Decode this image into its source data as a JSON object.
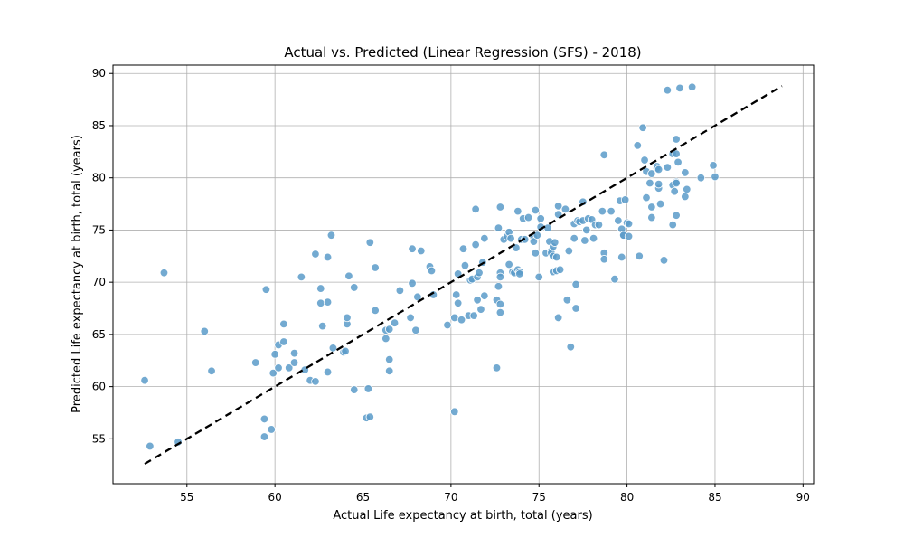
{
  "chart_data": {
    "type": "scatter",
    "title": "Actual vs. Predicted (Linear Regression (SFS) - 2018)",
    "xlabel": "Actual Life expectancy at birth, total (years)",
    "ylabel": "Predicted Life expectancy at birth, total (years)",
    "xlim": [
      50.8,
      90.6
    ],
    "ylim": [
      50.7,
      90.8
    ],
    "xticks": [
      55,
      60,
      65,
      70,
      75,
      80,
      85,
      90
    ],
    "yticks": [
      55,
      60,
      65,
      70,
      75,
      80,
      85,
      90
    ],
    "grid": true,
    "point_color": "#5b9bc9",
    "reference_line": {
      "style": "dashed",
      "color": "#000000",
      "x": [
        52.6,
        88.8
      ],
      "y": [
        52.6,
        88.8
      ]
    },
    "points": [
      [
        52.6,
        60.6
      ],
      [
        52.9,
        54.3
      ],
      [
        53.7,
        70.9
      ],
      [
        54.5,
        54.7
      ],
      [
        56.0,
        65.3
      ],
      [
        56.4,
        61.5
      ],
      [
        58.9,
        62.3
      ],
      [
        59.4,
        55.2
      ],
      [
        59.4,
        56.9
      ],
      [
        59.5,
        69.3
      ],
      [
        59.8,
        55.9
      ],
      [
        59.9,
        61.3
      ],
      [
        60.0,
        63.1
      ],
      [
        60.2,
        61.8
      ],
      [
        60.2,
        64.0
      ],
      [
        60.5,
        64.3
      ],
      [
        60.5,
        66.0
      ],
      [
        60.8,
        61.8
      ],
      [
        61.1,
        63.2
      ],
      [
        61.1,
        62.3
      ],
      [
        61.5,
        70.5
      ],
      [
        61.7,
        61.6
      ],
      [
        62.0,
        60.6
      ],
      [
        62.3,
        60.5
      ],
      [
        62.3,
        72.7
      ],
      [
        62.6,
        69.4
      ],
      [
        62.6,
        68.0
      ],
      [
        62.7,
        65.8
      ],
      [
        63.0,
        72.4
      ],
      [
        63.0,
        68.1
      ],
      [
        63.0,
        61.4
      ],
      [
        63.2,
        74.5
      ],
      [
        63.3,
        63.7
      ],
      [
        63.9,
        63.3
      ],
      [
        64.0,
        63.4
      ],
      [
        64.1,
        66.0
      ],
      [
        64.1,
        66.6
      ],
      [
        64.2,
        70.6
      ],
      [
        64.5,
        69.5
      ],
      [
        64.5,
        59.7
      ],
      [
        65.2,
        57.0
      ],
      [
        65.3,
        59.8
      ],
      [
        65.4,
        57.1
      ],
      [
        65.4,
        73.8
      ],
      [
        65.7,
        71.4
      ],
      [
        65.7,
        67.3
      ],
      [
        66.3,
        64.6
      ],
      [
        66.3,
        65.4
      ],
      [
        66.5,
        62.6
      ],
      [
        66.5,
        61.5
      ],
      [
        66.5,
        65.5
      ],
      [
        66.8,
        66.1
      ],
      [
        67.1,
        69.2
      ],
      [
        67.7,
        66.6
      ],
      [
        67.8,
        73.2
      ],
      [
        67.8,
        69.9
      ],
      [
        68.0,
        65.4
      ],
      [
        68.1,
        68.6
      ],
      [
        68.3,
        73.0
      ],
      [
        68.8,
        71.5
      ],
      [
        68.9,
        71.1
      ],
      [
        69.0,
        68.8
      ],
      [
        69.8,
        65.9
      ],
      [
        70.2,
        57.6
      ],
      [
        70.2,
        66.6
      ],
      [
        70.3,
        68.8
      ],
      [
        70.4,
        70.8
      ],
      [
        70.4,
        68.0
      ],
      [
        70.6,
        66.4
      ],
      [
        70.7,
        73.2
      ],
      [
        70.8,
        71.6
      ],
      [
        71.0,
        66.8
      ],
      [
        71.1,
        70.2
      ],
      [
        71.2,
        70.3
      ],
      [
        71.3,
        66.8
      ],
      [
        71.4,
        73.6
      ],
      [
        71.4,
        77.0
      ],
      [
        71.5,
        68.3
      ],
      [
        71.5,
        70.5
      ],
      [
        71.6,
        70.9
      ],
      [
        71.7,
        67.4
      ],
      [
        71.8,
        71.9
      ],
      [
        71.9,
        68.7
      ],
      [
        71.9,
        74.2
      ],
      [
        72.6,
        68.3
      ],
      [
        72.6,
        61.8
      ],
      [
        72.7,
        69.6
      ],
      [
        72.7,
        75.2
      ],
      [
        72.8,
        67.9
      ],
      [
        72.8,
        70.9
      ],
      [
        72.8,
        67.1
      ],
      [
        72.8,
        70.5
      ],
      [
        72.8,
        77.2
      ],
      [
        73.0,
        74.1
      ],
      [
        73.2,
        74.4
      ],
      [
        73.3,
        74.8
      ],
      [
        73.3,
        71.7
      ],
      [
        73.4,
        74.2
      ],
      [
        73.5,
        71.0
      ],
      [
        73.6,
        70.9
      ],
      [
        73.7,
        73.3
      ],
      [
        73.8,
        71.2
      ],
      [
        73.8,
        76.8
      ],
      [
        73.9,
        71.0
      ],
      [
        73.9,
        70.8
      ],
      [
        74.0,
        74.1
      ],
      [
        74.1,
        76.1
      ],
      [
        74.2,
        74.1
      ],
      [
        74.4,
        76.2
      ],
      [
        74.7,
        74.3
      ],
      [
        74.7,
        73.9
      ],
      [
        74.8,
        76.9
      ],
      [
        74.8,
        72.8
      ],
      [
        74.9,
        74.5
      ],
      [
        75.0,
        70.5
      ],
      [
        75.1,
        75.3
      ],
      [
        75.1,
        76.1
      ],
      [
        75.4,
        72.8
      ],
      [
        75.5,
        75.2
      ],
      [
        75.6,
        73.9
      ],
      [
        75.7,
        73.0
      ],
      [
        75.7,
        72.8
      ],
      [
        75.8,
        71.0
      ],
      [
        75.8,
        73.4
      ],
      [
        75.8,
        72.5
      ],
      [
        75.9,
        73.8
      ],
      [
        76.0,
        72.4
      ],
      [
        76.0,
        71.1
      ],
      [
        76.1,
        76.5
      ],
      [
        76.1,
        77.3
      ],
      [
        76.1,
        66.6
      ],
      [
        76.2,
        71.2
      ],
      [
        76.5,
        77.0
      ],
      [
        76.6,
        68.3
      ],
      [
        76.7,
        73.0
      ],
      [
        76.8,
        63.8
      ],
      [
        77.0,
        74.2
      ],
      [
        77.0,
        75.6
      ],
      [
        77.1,
        69.8
      ],
      [
        77.1,
        67.5
      ],
      [
        77.2,
        75.9
      ],
      [
        77.3,
        75.8
      ],
      [
        77.5,
        75.9
      ],
      [
        77.5,
        77.7
      ],
      [
        77.6,
        74.0
      ],
      [
        77.7,
        75.0
      ],
      [
        77.8,
        76.1
      ],
      [
        78.0,
        76.0
      ],
      [
        78.1,
        74.2
      ],
      [
        78.2,
        75.5
      ],
      [
        78.4,
        75.5
      ],
      [
        78.6,
        76.8
      ],
      [
        78.7,
        82.2
      ],
      [
        78.7,
        72.8
      ],
      [
        78.7,
        72.2
      ],
      [
        79.1,
        76.8
      ],
      [
        79.3,
        70.3
      ],
      [
        79.5,
        75.9
      ],
      [
        79.6,
        77.8
      ],
      [
        79.7,
        72.4
      ],
      [
        79.7,
        75.1
      ],
      [
        79.8,
        74.5
      ],
      [
        79.8,
        74.5
      ],
      [
        79.9,
        77.9
      ],
      [
        80.0,
        75.7
      ],
      [
        80.1,
        75.6
      ],
      [
        80.1,
        74.4
      ],
      [
        80.6,
        83.1
      ],
      [
        80.7,
        72.5
      ],
      [
        80.9,
        84.8
      ],
      [
        81.0,
        81.7
      ],
      [
        81.1,
        78.1
      ],
      [
        81.1,
        80.6
      ],
      [
        81.3,
        79.5
      ],
      [
        81.4,
        76.2
      ],
      [
        81.4,
        80.4
      ],
      [
        81.4,
        77.2
      ],
      [
        81.7,
        81.1
      ],
      [
        81.7,
        80.9
      ],
      [
        81.8,
        79.0
      ],
      [
        81.8,
        80.8
      ],
      [
        81.8,
        79.4
      ],
      [
        81.9,
        77.5
      ],
      [
        82.1,
        72.1
      ],
      [
        82.3,
        81.0
      ],
      [
        82.3,
        88.4
      ],
      [
        82.6,
        79.3
      ],
      [
        82.6,
        82.3
      ],
      [
        82.6,
        75.5
      ],
      [
        82.7,
        78.7
      ],
      [
        82.8,
        83.7
      ],
      [
        82.8,
        82.3
      ],
      [
        82.8,
        79.6
      ],
      [
        82.8,
        79.5
      ],
      [
        82.8,
        76.4
      ],
      [
        82.9,
        81.5
      ],
      [
        83.0,
        88.6
      ],
      [
        83.3,
        78.2
      ],
      [
        83.3,
        80.5
      ],
      [
        83.4,
        78.9
      ],
      [
        83.7,
        88.7
      ],
      [
        84.2,
        80.0
      ],
      [
        84.9,
        81.2
      ],
      [
        85.0,
        80.1
      ]
    ]
  }
}
